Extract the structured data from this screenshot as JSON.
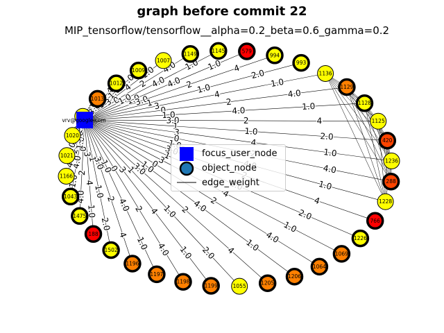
{
  "title": "graph before commit 22",
  "subtitle": "MIP_tensorflow/tensorflow__alpha=0.2_beta=0.6_gamma=0.2",
  "colors": {
    "yellow": "#ffff00",
    "orange": "#ff8000",
    "red_orange": "#ff4400",
    "red": "#ff0000",
    "focus_blue": "#0000ff",
    "object_blue": "#1f77b4"
  },
  "focus_node": {
    "label": "vrv@google.com"
  },
  "nodes": [
    {
      "label": "579",
      "color": "red",
      "border": "thick"
    },
    {
      "label": "994",
      "color": "yellow",
      "border": "thick"
    },
    {
      "label": "993",
      "color": "yellow",
      "border": "thick"
    },
    {
      "label": "1136",
      "color": "yellow",
      "border": "thin"
    },
    {
      "label": "1129",
      "color": "orange",
      "border": "thick"
    },
    {
      "label": "1128",
      "color": "yellow",
      "border": "thick"
    },
    {
      "label": "1125",
      "color": "yellow",
      "border": "thin"
    },
    {
      "label": "420",
      "color": "red_orange",
      "border": "thick"
    },
    {
      "label": "1236",
      "color": "yellow",
      "border": "thin"
    },
    {
      "label": "288",
      "color": "red_orange",
      "border": "thick"
    },
    {
      "label": "1228",
      "color": "yellow",
      "border": "thin"
    },
    {
      "label": "766",
      "color": "red",
      "border": "thick"
    },
    {
      "label": "1226",
      "color": "yellow",
      "border": "thick"
    },
    {
      "label": "1069",
      "color": "orange",
      "border": "thick"
    },
    {
      "label": "1064",
      "color": "orange",
      "border": "thick"
    },
    {
      "label": "1206",
      "color": "orange",
      "border": "thick"
    },
    {
      "label": "1205",
      "color": "orange",
      "border": "thick"
    },
    {
      "label": "1055",
      "color": "yellow",
      "border": "thin"
    },
    {
      "label": "1199",
      "color": "orange",
      "border": "thick"
    },
    {
      "label": "1198",
      "color": "orange",
      "border": "thick"
    },
    {
      "label": "1197",
      "color": "orange",
      "border": "thick"
    },
    {
      "label": "1196",
      "color": "orange",
      "border": "thick"
    },
    {
      "label": "1502",
      "color": "yellow",
      "border": "thick"
    },
    {
      "label": "188",
      "color": "red",
      "border": "thick"
    },
    {
      "label": "1475",
      "color": "yellow",
      "border": "thick"
    },
    {
      "label": "1043",
      "color": "yellow",
      "border": "thick"
    },
    {
      "label": "1166",
      "color": "yellow",
      "border": "thin"
    },
    {
      "label": "1021",
      "color": "yellow",
      "border": "thin"
    },
    {
      "label": "1020",
      "color": "yellow",
      "border": "thin"
    },
    {
      "label": "1155",
      "color": "yellow",
      "border": "thin"
    },
    {
      "label": "1013",
      "color": "orange",
      "border": "thick"
    },
    {
      "label": "1012",
      "color": "yellow",
      "border": "thick"
    },
    {
      "label": "1009",
      "color": "yellow",
      "border": "thick"
    },
    {
      "label": "1007",
      "color": "yellow",
      "border": "thin"
    },
    {
      "label": "1149",
      "color": "yellow",
      "border": "thick"
    },
    {
      "label": "1145",
      "color": "yellow",
      "border": "thick"
    }
  ],
  "edge_weight_labels": [
    "1.0",
    "4.0",
    "1.0",
    "3.0",
    "2",
    "4",
    "1",
    "1.0",
    "2.0",
    "3",
    "4",
    "1.0",
    "0",
    "2",
    "4.0"
  ],
  "legend": {
    "focus_label": "focus_user_node",
    "object_label": "object_node",
    "edge_label": "edge_weight"
  }
}
